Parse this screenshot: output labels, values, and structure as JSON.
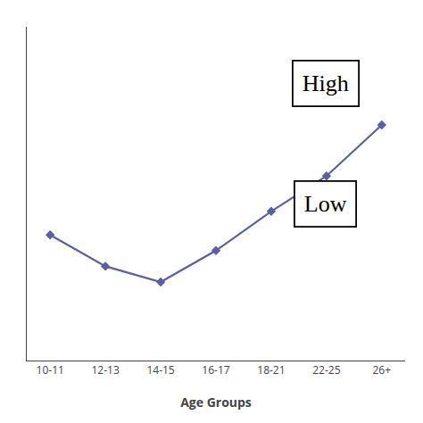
{
  "chart_data": {
    "type": "line",
    "categories": [
      "10-11",
      "12-13",
      "14-15",
      "16-17",
      "18-21",
      "22-25",
      "26+"
    ],
    "values": [
      0.62,
      0.54,
      0.5,
      0.58,
      0.68,
      0.77,
      0.9
    ],
    "color": "#5B5EA6",
    "marker": "diamond",
    "xlabel": "Age Groups",
    "ylim": [
      0.3,
      1.15
    ],
    "tick_labels": "x",
    "grid": false,
    "annotations": [
      "High",
      "Low"
    ]
  }
}
